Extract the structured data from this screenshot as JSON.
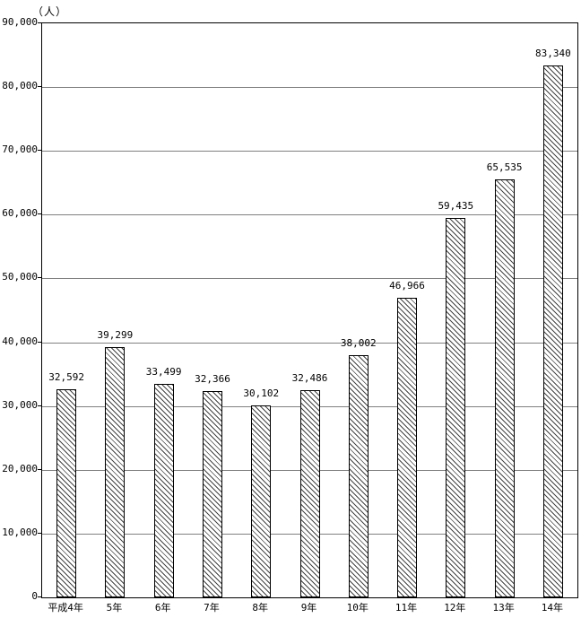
{
  "chart_data": {
    "type": "bar",
    "title": "",
    "xlabel": "",
    "ylabel": "",
    "unit_label": "（人）",
    "categories": [
      "平成4年",
      "5年",
      "6年",
      "7年",
      "8年",
      "9年",
      "10年",
      "11年",
      "12年",
      "13年",
      "14年"
    ],
    "values": [
      32592,
      39299,
      33499,
      32366,
      30102,
      32486,
      38002,
      46966,
      59435,
      65535,
      83340
    ],
    "value_labels": [
      "32,592",
      "39,299",
      "33,499",
      "32,366",
      "30,102",
      "32,486",
      "38,002",
      "46,966",
      "59,435",
      "65,535",
      "83,340"
    ],
    "ylim": [
      0,
      90000
    ],
    "ytick_interval": 10000,
    "ytick_labels": [
      "0",
      "10,000",
      "20,000",
      "30,000",
      "40,000",
      "50,000",
      "60,000",
      "70,000",
      "80,000",
      "90,000"
    ],
    "grid": true,
    "legend": "none",
    "bar_fill": "diagonal-hatch",
    "bar_border_color": "#000000",
    "grid_color": "#808080",
    "frame_color": "#000000",
    "background_color": "#ffffff"
  }
}
